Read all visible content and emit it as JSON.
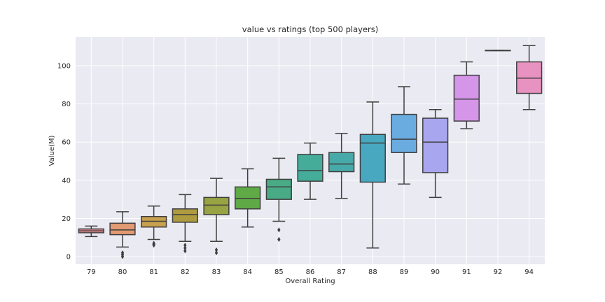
{
  "chart_data": {
    "type": "box",
    "title": "value vs ratings (top 500 players)",
    "xlabel": "Overall Rating",
    "ylabel": "Value(M)",
    "ylim": [
      -4,
      115
    ],
    "yticks": [
      0,
      20,
      40,
      60,
      80,
      100
    ],
    "grid": true,
    "legend": "none",
    "categories": [
      "79",
      "80",
      "81",
      "82",
      "83",
      "84",
      "85",
      "86",
      "87",
      "88",
      "89",
      "90",
      "91",
      "92",
      "94"
    ],
    "boxes": [
      {
        "category": "79",
        "whisker_low": 10.5,
        "q1": 12.5,
        "median": 13.5,
        "q3": 14.5,
        "whisker_high": 16,
        "outliers": [],
        "color": "#e48a8f"
      },
      {
        "category": "80",
        "whisker_low": 5,
        "q1": 11.5,
        "median": 14,
        "q3": 17.5,
        "whisker_high": 23.5,
        "outliers": [
          2,
          1,
          0
        ],
        "color": "#e19a72"
      },
      {
        "category": "81",
        "whisker_low": 9,
        "q1": 15.5,
        "median": 18.5,
        "q3": 21,
        "whisker_high": 26.5,
        "outliers": [
          7,
          6.5,
          6
        ],
        "color": "#c8a04e"
      },
      {
        "category": "82",
        "whisker_low": 8,
        "q1": 18,
        "median": 22,
        "q3": 25,
        "whisker_high": 32.5,
        "outliers": [
          6,
          4.5,
          3
        ],
        "color": "#ae9b40"
      },
      {
        "category": "83",
        "whisker_low": 8,
        "q1": 22,
        "median": 27,
        "q3": 31,
        "whisker_high": 41,
        "outliers": [
          3.5,
          2
        ],
        "color": "#98a443"
      },
      {
        "category": "84",
        "whisker_low": 15.5,
        "q1": 25,
        "median": 30.5,
        "q3": 36.5,
        "whisker_high": 46,
        "outliers": [],
        "color": "#5faa46"
      },
      {
        "category": "85",
        "whisker_low": 18.5,
        "q1": 30,
        "median": 36.5,
        "q3": 40.5,
        "whisker_high": 51.5,
        "outliers": [
          14,
          9
        ],
        "color": "#49ab86"
      },
      {
        "category": "86",
        "whisker_low": 30,
        "q1": 39.5,
        "median": 45,
        "q3": 53.5,
        "whisker_high": 59.5,
        "outliers": [],
        "color": "#45ac99"
      },
      {
        "category": "87",
        "whisker_low": 30.5,
        "q1": 44.5,
        "median": 48.5,
        "q3": 54.5,
        "whisker_high": 64.5,
        "outliers": [],
        "color": "#47aaa8"
      },
      {
        "category": "88",
        "whisker_low": 4.5,
        "q1": 39,
        "median": 59.5,
        "q3": 64,
        "whisker_high": 81,
        "outliers": [],
        "color": "#48a8c0"
      },
      {
        "category": "89",
        "whisker_low": 38,
        "q1": 54.5,
        "median": 61.5,
        "q3": 74.5,
        "whisker_high": 89,
        "outliers": [],
        "color": "#6aabe0"
      },
      {
        "category": "90",
        "whisker_low": 31,
        "q1": 44,
        "median": 60,
        "q3": 72.5,
        "whisker_high": 77,
        "outliers": [],
        "color": "#a8a6ee"
      },
      {
        "category": "91",
        "whisker_low": 67,
        "q1": 71,
        "median": 82.5,
        "q3": 95,
        "whisker_high": 102,
        "outliers": [],
        "color": "#d595e9"
      },
      {
        "category": "92",
        "whisker_low": 108,
        "q1": 108,
        "median": 108,
        "q3": 108,
        "whisker_high": 108,
        "outliers": [],
        "color": "#e58ad6"
      },
      {
        "category": "94",
        "whisker_low": 77,
        "q1": 85.5,
        "median": 93.5,
        "q3": 102,
        "whisker_high": 110.5,
        "outliers": [],
        "color": "#e892c1"
      }
    ]
  }
}
